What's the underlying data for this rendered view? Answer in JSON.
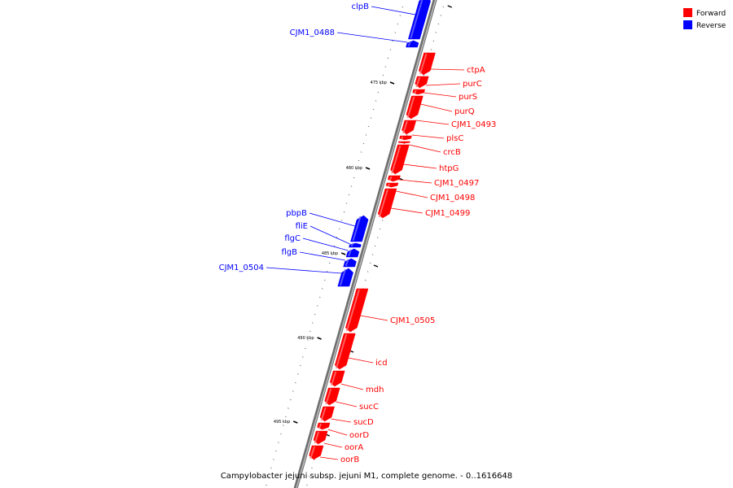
{
  "caption": "Campylobacter jejuni subsp. jejuni M1, complete genome. - 0..1616648",
  "legend": [
    {
      "label": "Forward",
      "color": "#ff0000"
    },
    {
      "label": "Reverse",
      "color": "#0000ff"
    }
  ],
  "colors": {
    "forward": "#ff0000",
    "reverse": "#0000ff",
    "backbone": "#999999"
  },
  "kbp_markers": [
    "475 kbp",
    "480 kbp",
    "485 kbp",
    "490 kbp",
    "495 kbp"
  ],
  "genes": [
    {
      "name": "clpB",
      "strand": "reverse"
    },
    {
      "name": "CJM1_0488",
      "strand": "reverse"
    },
    {
      "name": "ctpA",
      "strand": "forward"
    },
    {
      "name": "purC",
      "strand": "forward"
    },
    {
      "name": "purS",
      "strand": "forward"
    },
    {
      "name": "purQ",
      "strand": "forward"
    },
    {
      "name": "CJM1_0493",
      "strand": "forward"
    },
    {
      "name": "plsC",
      "strand": "forward"
    },
    {
      "name": "crcB",
      "strand": "forward"
    },
    {
      "name": "htpG",
      "strand": "forward"
    },
    {
      "name": "CJM1_0497",
      "strand": "forward"
    },
    {
      "name": "CJM1_0498",
      "strand": "forward"
    },
    {
      "name": "CJM1_0499",
      "strand": "forward"
    },
    {
      "name": "pbpB",
      "strand": "reverse"
    },
    {
      "name": "fliE",
      "strand": "reverse"
    },
    {
      "name": "flgC",
      "strand": "reverse"
    },
    {
      "name": "flgB",
      "strand": "reverse"
    },
    {
      "name": "CJM1_0504",
      "strand": "reverse"
    },
    {
      "name": "CJM1_0505",
      "strand": "forward"
    },
    {
      "name": "icd",
      "strand": "forward"
    },
    {
      "name": "mdh",
      "strand": "forward"
    },
    {
      "name": "sucC",
      "strand": "forward"
    },
    {
      "name": "sucD",
      "strand": "forward"
    },
    {
      "name": "oorD",
      "strand": "forward"
    },
    {
      "name": "oorA",
      "strand": "forward"
    },
    {
      "name": "oorB",
      "strand": "forward"
    }
  ]
}
